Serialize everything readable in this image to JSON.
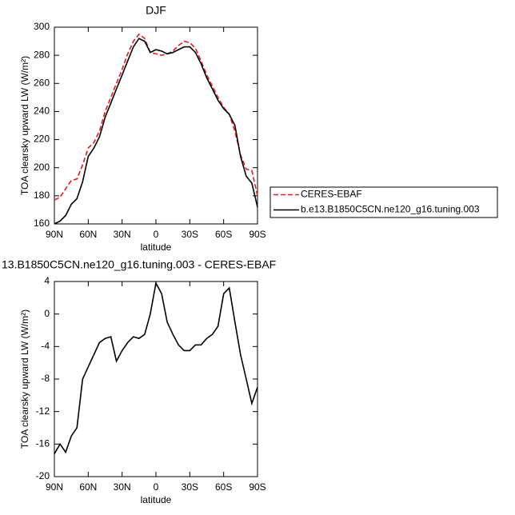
{
  "chart_data": [
    {
      "type": "line",
      "title": "DJF",
      "x_label": "latitude",
      "y_label": "TOA clearsky upward LW (W/m²)",
      "x": [
        90,
        85,
        80,
        75,
        70,
        65,
        60,
        55,
        50,
        45,
        40,
        35,
        30,
        25,
        20,
        15,
        10,
        5,
        0,
        -5,
        -10,
        -15,
        -20,
        -25,
        -30,
        -35,
        -40,
        -45,
        -50,
        -55,
        -60,
        -65,
        -70,
        -75,
        -80,
        -85,
        -90
      ],
      "series": [
        {
          "name": "CERES-EBAF",
          "color": "#e41a1c",
          "line_style": "dashed",
          "values": [
            177,
            179,
            185,
            191,
            192,
            202,
            214,
            218,
            226,
            240,
            250,
            260,
            270,
            281,
            290,
            295,
            292,
            282,
            281,
            280,
            281,
            283,
            287,
            290,
            289,
            285,
            276,
            266,
            258,
            250,
            243,
            238,
            226,
            209,
            199,
            198,
            180
          ]
        },
        {
          "name": "b.e13.B1850C5CN.ne120_g16.tuning.003",
          "color": "#000000",
          "line_style": "solid",
          "values": [
            160,
            162,
            166,
            174,
            178,
            190,
            208,
            214,
            222,
            236,
            246,
            256,
            266,
            276,
            286,
            292,
            290,
            282,
            284,
            283,
            281,
            282,
            284,
            286,
            286,
            282,
            274,
            264,
            256,
            248,
            242,
            238,
            230,
            208,
            194,
            189,
            172
          ]
        }
      ],
      "xlim": [
        90,
        -90
      ],
      "xticks": [
        {
          "value": 90,
          "label": "90N"
        },
        {
          "value": 60,
          "label": "60N"
        },
        {
          "value": 30,
          "label": "30N"
        },
        0,
        {
          "value": -30,
          "label": "30S"
        },
        {
          "value": -60,
          "label": "60S"
        },
        {
          "value": -90,
          "label": "90S"
        }
      ],
      "ylim": [
        160,
        300
      ],
      "yticks": [
        160,
        180,
        200,
        220,
        240,
        260,
        280,
        300
      ],
      "legend": "outside-right"
    },
    {
      "type": "line",
      "title": "13.B1850C5CN.ne120_g16.tuning.003 - CERES-EBAF",
      "x_label": "latitude",
      "y_label": "TOA clearsky upward LW (W/m²)",
      "x": [
        90,
        85,
        80,
        75,
        70,
        65,
        60,
        55,
        50,
        45,
        40,
        35,
        30,
        25,
        20,
        15,
        10,
        5,
        0,
        -5,
        -10,
        -15,
        -20,
        -25,
        -30,
        -35,
        -40,
        -45,
        -50,
        -55,
        -60,
        -65,
        -70,
        -75,
        -80,
        -85,
        -90
      ],
      "series": [
        {
          "color": "#000000",
          "line_style": "solid",
          "values": [
            -17.2,
            -16,
            -17,
            -15,
            -14,
            -8,
            -6.5,
            -5,
            -3.5,
            -3,
            -2.8,
            -5.8,
            -4.5,
            -3.5,
            -2.8,
            -3,
            -2.5,
            0,
            3.8,
            2.5,
            -1,
            -2.5,
            -3.8,
            -4.5,
            -4.5,
            -3.8,
            -3.8,
            -3,
            -2.5,
            -1.5,
            2.5,
            3.2,
            -1,
            -5,
            -8,
            -11,
            -9
          ]
        }
      ],
      "xlim": [
        90,
        -90
      ],
      "xticks": [
        {
          "value": 90,
          "label": "90N"
        },
        {
          "value": 60,
          "label": "60N"
        },
        {
          "value": 30,
          "label": "30N"
        },
        0,
        {
          "value": -30,
          "label": "30S"
        },
        {
          "value": -60,
          "label": "60S"
        },
        {
          "value": -90,
          "label": "90S"
        }
      ],
      "ylim": [
        -20,
        4
      ],
      "yticks": [
        -20,
        -16,
        -12,
        -8,
        -4,
        0,
        4
      ]
    }
  ]
}
